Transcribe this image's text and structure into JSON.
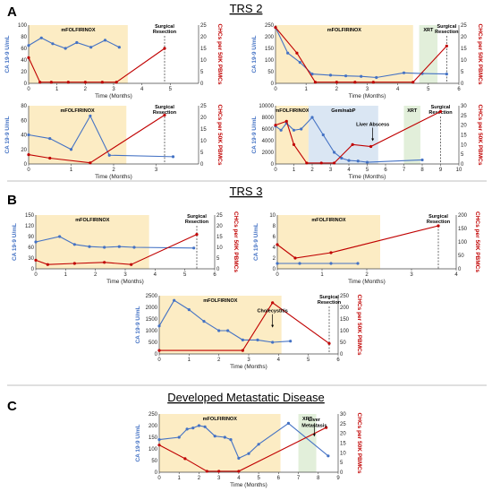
{
  "figure": {
    "colors": {
      "ca": "#4472c4",
      "chc": "#c00000",
      "chemo": "#fcecc4",
      "xrt": "#e2efda",
      "gem": "#dae6f3",
      "divider": "#aaaaaa"
    },
    "sections": [
      {
        "letter": "A",
        "title": "TRS 2"
      },
      {
        "letter": "B",
        "title": "TRS 3"
      },
      {
        "letter": "C",
        "title": "Developed Metastatic Disease"
      }
    ]
  },
  "chart_data": [
    {
      "type": "line",
      "xlabel": "Time  (Months)",
      "ylabel_left": "CA 19-9 U/mL",
      "ylabel_right": "CHCs per 50K PBMCs",
      "xlim": [
        0,
        6
      ],
      "xticks": [
        0,
        1,
        2,
        3,
        4,
        5
      ],
      "ylim_left": [
        0,
        100
      ],
      "yticks_left": [
        0,
        20,
        40,
        60,
        80,
        100
      ],
      "ylim_right": [
        0,
        25
      ],
      "yticks_right": [
        0,
        5,
        10,
        15,
        20,
        25
      ],
      "regions": [
        {
          "label": "mFOLFIRINOX",
          "x0": 0,
          "x1": 3.5,
          "kind": "chemo"
        }
      ],
      "series": [
        {
          "axis": "left",
          "x": [
            0,
            0.45,
            0.85,
            1.3,
            1.7,
            2.2,
            2.7,
            3.2
          ],
          "values": [
            65,
            78,
            68,
            60,
            70,
            62,
            74,
            62
          ]
        },
        {
          "axis": "right",
          "x": [
            0,
            0.4,
            0.8,
            1.4,
            2.0,
            2.6,
            3.1,
            4.8
          ],
          "values": [
            11,
            0.5,
            0.5,
            0.5,
            0.5,
            0.5,
            0.5,
            15
          ]
        }
      ],
      "events": [
        {
          "label": "Surgical\nResection",
          "x": 4.8
        }
      ]
    },
    {
      "type": "line",
      "xlabel": "Time  (Months)",
      "ylabel_left": "CA 19-9 U/mL",
      "ylabel_right": "CHCs per 50K PBMCs",
      "xlim": [
        0,
        6
      ],
      "xticks": [
        0,
        1,
        2,
        3,
        4,
        5,
        6
      ],
      "ylim_left": [
        0,
        250
      ],
      "yticks_left": [
        0,
        50,
        100,
        150,
        200,
        250
      ],
      "ylim_right": [
        0,
        25
      ],
      "yticks_right": [
        0,
        5,
        10,
        15,
        20,
        25
      ],
      "regions": [
        {
          "label": "mFOLFIRINOX",
          "x0": 0,
          "x1": 4.5,
          "kind": "chemo"
        },
        {
          "label": "XRT",
          "x0": 4.7,
          "x1": 5.3,
          "kind": "xrt"
        }
      ],
      "series": [
        {
          "axis": "left",
          "x": [
            0,
            0.4,
            0.8,
            1.2,
            1.8,
            2.3,
            2.8,
            3.3,
            4.2,
            4.8,
            5.6
          ],
          "values": [
            240,
            130,
            90,
            40,
            35,
            32,
            30,
            25,
            45,
            42,
            40
          ]
        },
        {
          "axis": "right",
          "x": [
            0,
            0.7,
            1.3,
            2.0,
            2.6,
            3.2,
            4.5,
            5.6
          ],
          "values": [
            24,
            13,
            0.5,
            0.5,
            0.5,
            0.5,
            0.5,
            16
          ]
        }
      ],
      "events": [
        {
          "label": "Surgical\nResection",
          "x": 5.6
        }
      ]
    },
    {
      "type": "line",
      "xlabel": "Time  (Months)",
      "ylabel_left": "CA 19-9 U/mL",
      "ylabel_right": "CHCs per 50K PBMCs",
      "xlim": [
        0,
        4
      ],
      "xticks": [
        0,
        1,
        2,
        3
      ],
      "ylim_left": [
        0,
        80
      ],
      "yticks_left": [
        0,
        20,
        40,
        60,
        80
      ],
      "ylim_right": [
        0,
        25
      ],
      "yticks_right": [
        0,
        5,
        10,
        15,
        20,
        25
      ],
      "regions": [
        {
          "label": "mFOLFIRINOX",
          "x0": 0,
          "x1": 2.3,
          "kind": "chemo"
        }
      ],
      "series": [
        {
          "axis": "left",
          "x": [
            0,
            0.5,
            1.0,
            1.45,
            1.9,
            3.4
          ],
          "values": [
            40,
            35,
            20,
            66,
            12,
            10
          ]
        },
        {
          "axis": "right",
          "x": [
            0,
            0.5,
            1.45,
            3.2
          ],
          "values": [
            4,
            2.5,
            0.5,
            21
          ]
        }
      ],
      "events": [
        {
          "label": "Surgical\nResection",
          "x": 3.2
        }
      ]
    },
    {
      "type": "line",
      "xlabel": "Time  (Months)",
      "ylabel_left": "CA 19-9 U/mL",
      "ylabel_right": "CHCs per 50K PBMCs",
      "xlim": [
        0,
        10
      ],
      "xticks": [
        0,
        1,
        2,
        3,
        4,
        5,
        6,
        7,
        8,
        9,
        10
      ],
      "ylim_left": [
        0,
        10000
      ],
      "yticks_left": [
        0,
        2000,
        4000,
        6000,
        8000,
        10000
      ],
      "ylim_right": [
        0,
        30
      ],
      "yticks_right": [
        0,
        5,
        10,
        15,
        20,
        25,
        30
      ],
      "regions": [
        {
          "label": "mFOLFIRINOX",
          "x0": 0,
          "x1": 1.8,
          "kind": "chemo"
        },
        {
          "label": "Gem/nabP",
          "x0": 1.8,
          "x1": 5.6,
          "kind": "gem"
        },
        {
          "label": "XRT",
          "x0": 7.0,
          "x1": 7.9,
          "kind": "xrt"
        }
      ],
      "series": [
        {
          "axis": "left",
          "x": [
            0,
            0.3,
            0.6,
            1.0,
            1.4,
            2.0,
            2.6,
            3.2,
            3.6,
            4.0,
            4.5,
            5.0,
            8.0
          ],
          "values": [
            6500,
            5800,
            7000,
            5800,
            6000,
            8000,
            5000,
            2000,
            1000,
            600,
            500,
            300,
            700
          ]
        },
        {
          "axis": "right",
          "x": [
            0,
            0.6,
            1.0,
            1.7,
            2.5,
            3.2,
            4.2,
            5.2,
            9.0
          ],
          "values": [
            20,
            22,
            10,
            0.5,
            0.5,
            0.5,
            10,
            9,
            27
          ]
        }
      ],
      "events": [
        {
          "label": "Surgical\nResection",
          "x": 9.0
        }
      ],
      "annotations": [
        {
          "label": "Liver Abscess",
          "x": 5.3,
          "value": 5000
        }
      ]
    },
    {
      "type": "line",
      "xlabel": "Time  (Months)",
      "ylabel_left": "CA 19-9 U/mL",
      "ylabel_right": "CHCs per 50K PBMCs",
      "xlim": [
        0,
        6
      ],
      "xticks": [
        0,
        1,
        2,
        3,
        4,
        5,
        6
      ],
      "ylim_left": [
        0,
        150
      ],
      "yticks_left": [
        0,
        30,
        60,
        90,
        120,
        150
      ],
      "ylim_right": [
        0,
        25
      ],
      "yticks_right": [
        0,
        5,
        10,
        15,
        20,
        25
      ],
      "regions": [
        {
          "label": "mFOLFIRINOX",
          "x0": 0,
          "x1": 3.8,
          "kind": "chemo"
        }
      ],
      "series": [
        {
          "axis": "left",
          "x": [
            0,
            0.8,
            1.3,
            1.8,
            2.3,
            2.8,
            3.3,
            5.3
          ],
          "values": [
            75,
            90,
            68,
            62,
            60,
            62,
            60,
            58
          ]
        },
        {
          "axis": "right",
          "x": [
            0,
            0.4,
            1.3,
            2.3,
            3.2,
            5.4
          ],
          "values": [
            4,
            2,
            2.5,
            3,
            2,
            16
          ]
        }
      ],
      "events": [
        {
          "label": "Surgical\nResection",
          "x": 5.4
        }
      ]
    },
    {
      "type": "line",
      "xlabel": "Time  (Months)",
      "ylabel_left": "CA 19-9 U/mL",
      "ylabel_right": "CHCs per 50K PBMCs",
      "xlim": [
        0,
        4
      ],
      "xticks": [
        0,
        1,
        2,
        3,
        4
      ],
      "ylim_left": [
        0,
        10
      ],
      "yticks_left": [
        0,
        2,
        4,
        6,
        8,
        10
      ],
      "ylim_right": [
        0,
        200
      ],
      "yticks_right": [
        0,
        50,
        100,
        150,
        200
      ],
      "regions": [
        {
          "label": "mFOLFIRINOX",
          "x0": 0,
          "x1": 2.3,
          "kind": "chemo"
        }
      ],
      "series": [
        {
          "axis": "left",
          "x": [
            0,
            0.5,
            1.2,
            1.8
          ],
          "values": [
            1,
            1,
            1,
            1
          ]
        },
        {
          "axis": "right",
          "x": [
            0,
            0.4,
            1.2,
            3.6
          ],
          "values": [
            90,
            40,
            60,
            160
          ]
        }
      ],
      "events": [
        {
          "label": "Surgical\nResection",
          "x": 3.6
        }
      ]
    },
    {
      "type": "line",
      "xlabel": "Time  (Months)",
      "ylabel_left": "CA 19-9 U/mL",
      "ylabel_right": "CHCs per 50K PBMCs",
      "xlim": [
        0,
        6
      ],
      "xticks": [
        0,
        1,
        2,
        3,
        4,
        5,
        6
      ],
      "ylim_left": [
        0,
        2500
      ],
      "yticks_left": [
        0,
        500,
        1000,
        1500,
        2000,
        2500
      ],
      "ylim_right": [
        0,
        250
      ],
      "yticks_right": [
        0,
        50,
        100,
        150,
        200,
        250
      ],
      "regions": [
        {
          "label": "mFOLFIRINOX",
          "x0": 0,
          "x1": 4.1,
          "kind": "chemo"
        }
      ],
      "series": [
        {
          "axis": "left",
          "x": [
            0,
            0.5,
            1.0,
            1.5,
            2.0,
            2.3,
            2.8,
            3.3,
            3.8,
            4.4
          ],
          "values": [
            1200,
            2300,
            1900,
            1400,
            1000,
            1000,
            600,
            600,
            500,
            550
          ]
        },
        {
          "axis": "right",
          "x": [
            0,
            2.8,
            3.8,
            5.7
          ],
          "values": [
            15,
            15,
            220,
            45
          ]
        }
      ],
      "events": [
        {
          "label": "Surgical\nResection",
          "x": 5.7
        }
      ],
      "annotations": [
        {
          "label": "Cholecystitis",
          "x": 3.8,
          "value": 1400
        }
      ]
    },
    {
      "type": "line",
      "xlabel": "Time  (Months)",
      "ylabel_left": "CA 19-9 U/mL",
      "ylabel_right": "CHCs per 50K PBMCs",
      "xlim": [
        0,
        9
      ],
      "xticks": [
        0,
        1,
        2,
        3,
        4,
        5,
        6,
        7,
        8,
        9
      ],
      "ylim_left": [
        0,
        250
      ],
      "yticks_left": [
        0,
        50,
        100,
        150,
        200,
        250
      ],
      "ylim_right": [
        0,
        30
      ],
      "yticks_right": [
        0,
        5,
        10,
        15,
        20,
        25,
        30
      ],
      "regions": [
        {
          "label": "mFOLFIRINOX",
          "x0": 0,
          "x1": 6.1,
          "kind": "chemo"
        },
        {
          "label": "XRT",
          "x0": 7.0,
          "x1": 7.9,
          "kind": "xrt"
        }
      ],
      "series": [
        {
          "axis": "left",
          "x": [
            0,
            1.0,
            1.4,
            1.7,
            2.0,
            2.3,
            2.8,
            3.3,
            3.6,
            4.0,
            4.5,
            5.0,
            6.5,
            8.5
          ],
          "values": [
            140,
            150,
            185,
            190,
            200,
            195,
            155,
            150,
            140,
            60,
            80,
            120,
            210,
            70
          ]
        },
        {
          "axis": "right",
          "x": [
            0,
            1.3,
            2.4,
            3.0,
            4.0,
            8.4
          ],
          "values": [
            14,
            7,
            0.5,
            0.5,
            0.5,
            23
          ]
        }
      ],
      "annotations": [
        {
          "label": "Liver\nMetastasis",
          "x": 7.8,
          "value": 180
        }
      ]
    }
  ]
}
